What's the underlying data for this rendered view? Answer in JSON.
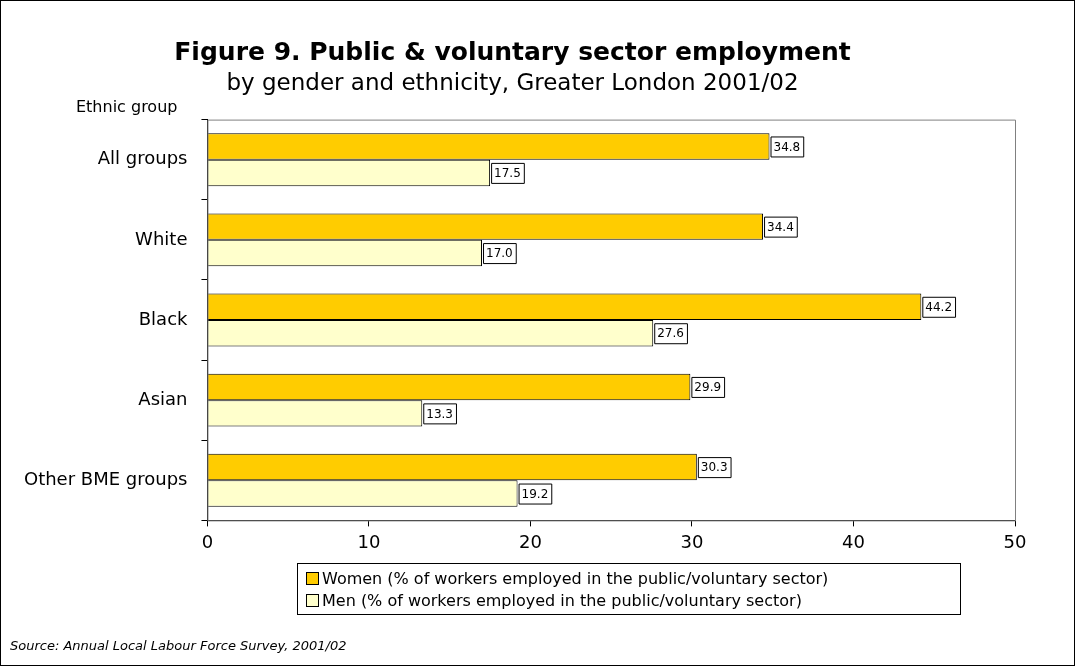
{
  "chart_data": {
    "type": "bar",
    "orientation": "horizontal",
    "title": "Figure 9. Public & voluntary sector employment",
    "subtitle": "by gender and ethnicity, Greater London 2001/02",
    "ylabel": "Ethnic group",
    "categories": [
      "All groups",
      "White",
      "Black",
      "Asian",
      "Other BME groups"
    ],
    "series": [
      {
        "name": "Women (% of workers employed in the public/voluntary sector)",
        "color": "#ffcc00",
        "values": [
          34.8,
          34.4,
          44.2,
          29.9,
          30.3
        ],
        "value_labels": [
          "34.8",
          "34.4",
          "44.2",
          "29.9",
          "30.3"
        ]
      },
      {
        "name": "Men (% of workers employed in the public/voluntary sector)",
        "color": "#ffffcc",
        "values": [
          17.5,
          17.0,
          27.6,
          13.3,
          19.2
        ],
        "value_labels": [
          "17.5",
          "17.0",
          "27.6",
          "13.3",
          "19.2"
        ]
      }
    ],
    "xlim": [
      0,
      50
    ],
    "xticks": [
      0,
      10,
      20,
      30,
      40,
      50
    ],
    "grid": false,
    "legend": "bottom",
    "annotations": [
      "Source: Annual Local Labour Force Survey, 2001/02"
    ]
  }
}
